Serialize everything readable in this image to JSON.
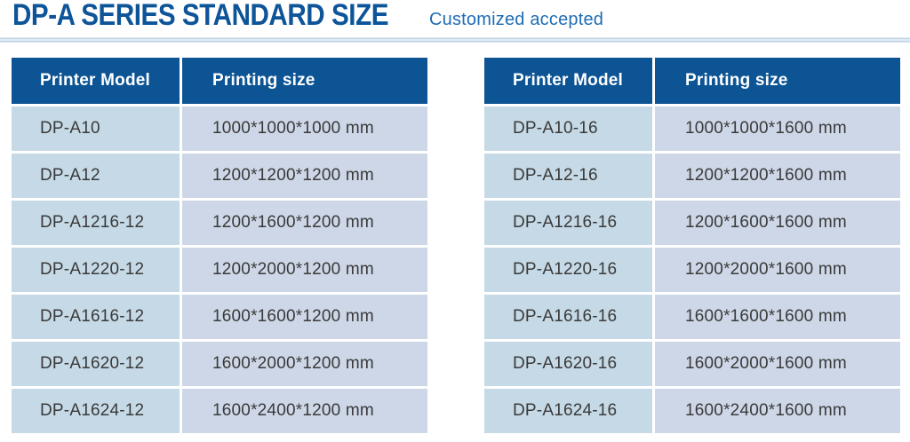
{
  "page": {
    "title": "DP-A SERIES STANDARD SIZE",
    "subtitle": "Customized accepted"
  },
  "colors": {
    "title_text": "#0d5499",
    "subtitle_text": "#1e6cb5",
    "header_bg": "#0d5494",
    "header_text": "#ffffff",
    "model_cell_bg": "#c5d9e6",
    "size_cell_bg": "#cdd7e7",
    "cell_text": "#3a3a3a"
  },
  "tables": [
    {
      "name": "standard-size-height-1200",
      "headers": [
        "Printer Model",
        "Printing size"
      ],
      "rows": [
        [
          "DP-A10",
          "1000*1000*1000 mm"
        ],
        [
          "DP-A12",
          "1200*1200*1200 mm"
        ],
        [
          "DP-A1216-12",
          "1200*1600*1200 mm"
        ],
        [
          "DP-A1220-12",
          "1200*2000*1200 mm"
        ],
        [
          "DP-A1616-12",
          "1600*1600*1200 mm"
        ],
        [
          "DP-A1620-12",
          "1600*2000*1200 mm"
        ],
        [
          "DP-A1624-12",
          "1600*2400*1200 mm"
        ]
      ]
    },
    {
      "name": "standard-size-height-1600",
      "headers": [
        "Printer Model",
        "Printing size"
      ],
      "rows": [
        [
          "DP-A10-16",
          "1000*1000*1600 mm"
        ],
        [
          "DP-A12-16",
          "1200*1200*1600 mm"
        ],
        [
          "DP-A1216-16",
          "1200*1600*1600 mm"
        ],
        [
          "DP-A1220-16",
          "1200*2000*1600 mm"
        ],
        [
          "DP-A1616-16",
          "1600*1600*1600 mm"
        ],
        [
          "DP-A1620-16",
          "1600*2000*1600 mm"
        ],
        [
          "DP-A1624-16",
          "1600*2400*1600 mm"
        ]
      ]
    }
  ]
}
